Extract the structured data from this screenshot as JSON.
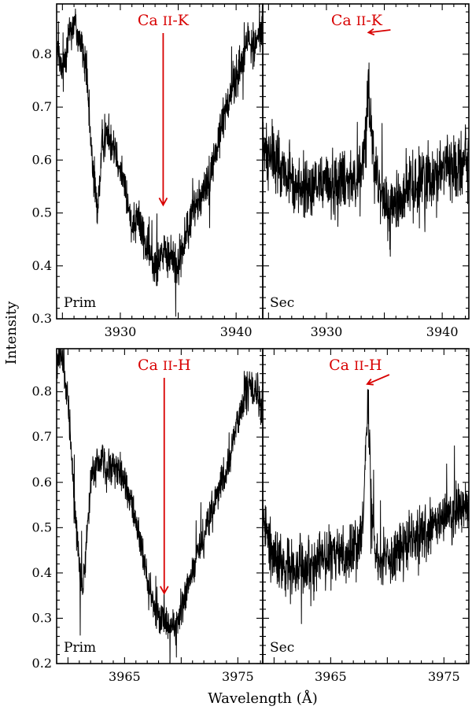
{
  "chart_data": {
    "type": "line",
    "ylabel": "Intensity",
    "xlabel": "Wavelength (Å)",
    "colors": {
      "spectrum": "#000000",
      "annotation": "#d80000"
    },
    "rows": [
      {
        "line": "K",
        "xlim": [
          3924.5,
          3942.3
        ],
        "ylim": [
          0.3,
          0.895
        ],
        "yticks": [
          0.3,
          0.4,
          0.5,
          0.6,
          0.7,
          0.8
        ],
        "yticklabels": [
          "0.3",
          "0.4",
          "0.5",
          "0.6",
          "0.7",
          "0.8"
        ],
        "xticks": [
          3930,
          3940
        ],
        "xticklabels": [
          "3930",
          "3940"
        ],
        "panels": [
          {
            "label": "Prim",
            "annotation": {
              "text_main": "Ca ",
              "text_roman": "ii",
              "text_line": "-K",
              "x": 3933.7,
              "y": 0.515
            },
            "series": [
              {
                "x": [
                  3924.5,
                  3925.0,
                  3925.5,
                  3926.0,
                  3926.5,
                  3927.0,
                  3927.5,
                  3928.0,
                  3928.5,
                  3929.0,
                  3929.5,
                  3930.0,
                  3930.5,
                  3931.0,
                  3931.5,
                  3932.0,
                  3932.5,
                  3933.0,
                  3933.5,
                  3934.0,
                  3934.5,
                  3935.0,
                  3935.5,
                  3936.0,
                  3936.5,
                  3937.0,
                  3937.5,
                  3938.0,
                  3938.5,
                  3939.0,
                  3939.5,
                  3940.0,
                  3940.5,
                  3941.0,
                  3941.5,
                  3942.0,
                  3942.3
                ],
                "y": [
                  0.81,
                  0.76,
                  0.84,
                  0.86,
                  0.83,
                  0.78,
                  0.62,
                  0.5,
                  0.64,
                  0.65,
                  0.63,
                  0.59,
                  0.53,
                  0.48,
                  0.5,
                  0.45,
                  0.42,
                  0.4,
                  0.43,
                  0.41,
                  0.42,
                  0.4,
                  0.44,
                  0.48,
                  0.52,
                  0.53,
                  0.56,
                  0.59,
                  0.64,
                  0.69,
                  0.73,
                  0.75,
                  0.79,
                  0.83,
                  0.81,
                  0.84,
                  0.85
                ]
              }
            ]
          },
          {
            "label": "Sec",
            "annotation": {
              "text_main": "Ca ",
              "text_roman": "ii",
              "text_line": "-K",
              "x": 3933.7,
              "y": 0.835
            },
            "series": [
              {
                "x": [
                  3924.5,
                  3925.0,
                  3925.5,
                  3926.0,
                  3926.5,
                  3927.0,
                  3927.5,
                  3928.0,
                  3928.5,
                  3929.0,
                  3929.5,
                  3930.0,
                  3930.5,
                  3931.0,
                  3931.5,
                  3932.0,
                  3932.5,
                  3933.0,
                  3933.3,
                  3933.6,
                  3933.9,
                  3934.2,
                  3934.5,
                  3935.0,
                  3935.5,
                  3936.0,
                  3936.5,
                  3937.0,
                  3937.5,
                  3938.0,
                  3938.5,
                  3939.0,
                  3939.5,
                  3940.0,
                  3940.5,
                  3941.0,
                  3941.5,
                  3942.0,
                  3942.3
                ],
                "y": [
                  0.63,
                  0.61,
                  0.6,
                  0.59,
                  0.57,
                  0.56,
                  0.55,
                  0.55,
                  0.54,
                  0.55,
                  0.56,
                  0.56,
                  0.55,
                  0.56,
                  0.57,
                  0.57,
                  0.56,
                  0.57,
                  0.63,
                  0.74,
                  0.66,
                  0.57,
                  0.55,
                  0.52,
                  0.5,
                  0.52,
                  0.53,
                  0.55,
                  0.55,
                  0.56,
                  0.57,
                  0.57,
                  0.58,
                  0.59,
                  0.6,
                  0.58,
                  0.59,
                  0.6,
                  0.61
                ]
              }
            ]
          }
        ]
      },
      {
        "line": "H",
        "xlim": [
          3959.0,
          3977.2
        ],
        "ylim": [
          0.2,
          0.895
        ],
        "yticks": [
          0.2,
          0.3,
          0.4,
          0.5,
          0.6,
          0.7,
          0.8
        ],
        "yticklabels": [
          "0.2",
          "0.3",
          "0.4",
          "0.5",
          "0.6",
          "0.7",
          "0.8"
        ],
        "xticks": [
          3965,
          3975
        ],
        "xticklabels": [
          "3965",
          "3975"
        ],
        "panels": [
          {
            "label": "Prim",
            "annotation": {
              "text_main": "Ca ",
              "text_roman": "ii",
              "text_line": "-H",
              "x": 3968.5,
              "y": 0.355
            },
            "series": [
              {
                "x": [
                  3959.0,
                  3959.5,
                  3960.0,
                  3960.5,
                  3961.0,
                  3961.3,
                  3961.6,
                  3962.0,
                  3962.5,
                  3963.0,
                  3963.5,
                  3964.0,
                  3964.5,
                  3965.0,
                  3965.5,
                  3966.0,
                  3966.5,
                  3967.0,
                  3967.5,
                  3968.0,
                  3968.5,
                  3969.0,
                  3969.5,
                  3970.0,
                  3970.5,
                  3971.0,
                  3971.5,
                  3972.0,
                  3972.5,
                  3973.0,
                  3973.5,
                  3974.0,
                  3974.5,
                  3975.0,
                  3975.5,
                  3976.0,
                  3976.5,
                  3977.2
                ],
                "y": [
                  0.86,
                  0.88,
                  0.78,
                  0.58,
                  0.42,
                  0.36,
                  0.45,
                  0.6,
                  0.64,
                  0.65,
                  0.63,
                  0.63,
                  0.62,
                  0.6,
                  0.57,
                  0.52,
                  0.45,
                  0.38,
                  0.33,
                  0.3,
                  0.3,
                  0.29,
                  0.28,
                  0.31,
                  0.36,
                  0.41,
                  0.45,
                  0.48,
                  0.52,
                  0.56,
                  0.59,
                  0.62,
                  0.68,
                  0.74,
                  0.78,
                  0.81,
                  0.8,
                  0.76
                ]
              }
            ]
          },
          {
            "label": "Sec",
            "annotation": {
              "text_main": "Ca ",
              "text_roman": "ii",
              "text_line": "-H",
              "x": 3968.3,
              "y": 0.81
            },
            "series": [
              {
                "x": [
                  3959.0,
                  3959.5,
                  3960.0,
                  3960.5,
                  3961.0,
                  3961.5,
                  3962.0,
                  3962.5,
                  3963.0,
                  3963.5,
                  3964.0,
                  3964.5,
                  3965.0,
                  3965.5,
                  3966.0,
                  3966.5,
                  3967.0,
                  3967.5,
                  3967.8,
                  3968.1,
                  3968.3,
                  3968.5,
                  3968.8,
                  3969.1,
                  3969.5,
                  3970.0,
                  3970.5,
                  3971.0,
                  3971.5,
                  3972.0,
                  3972.5,
                  3973.0,
                  3973.5,
                  3974.0,
                  3974.5,
                  3975.0,
                  3975.5,
                  3976.0,
                  3976.5,
                  3977.2
                ],
                "y": [
                  0.52,
                  0.47,
                  0.44,
                  0.42,
                  0.41,
                  0.41,
                  0.42,
                  0.43,
                  0.42,
                  0.42,
                  0.43,
                  0.44,
                  0.43,
                  0.44,
                  0.45,
                  0.44,
                  0.45,
                  0.47,
                  0.53,
                  0.66,
                  0.78,
                  0.62,
                  0.49,
                  0.44,
                  0.42,
                  0.43,
                  0.44,
                  0.46,
                  0.45,
                  0.47,
                  0.48,
                  0.49,
                  0.48,
                  0.5,
                  0.51,
                  0.52,
                  0.53,
                  0.53,
                  0.54,
                  0.55
                ]
              }
            ]
          }
        ]
      }
    ]
  }
}
